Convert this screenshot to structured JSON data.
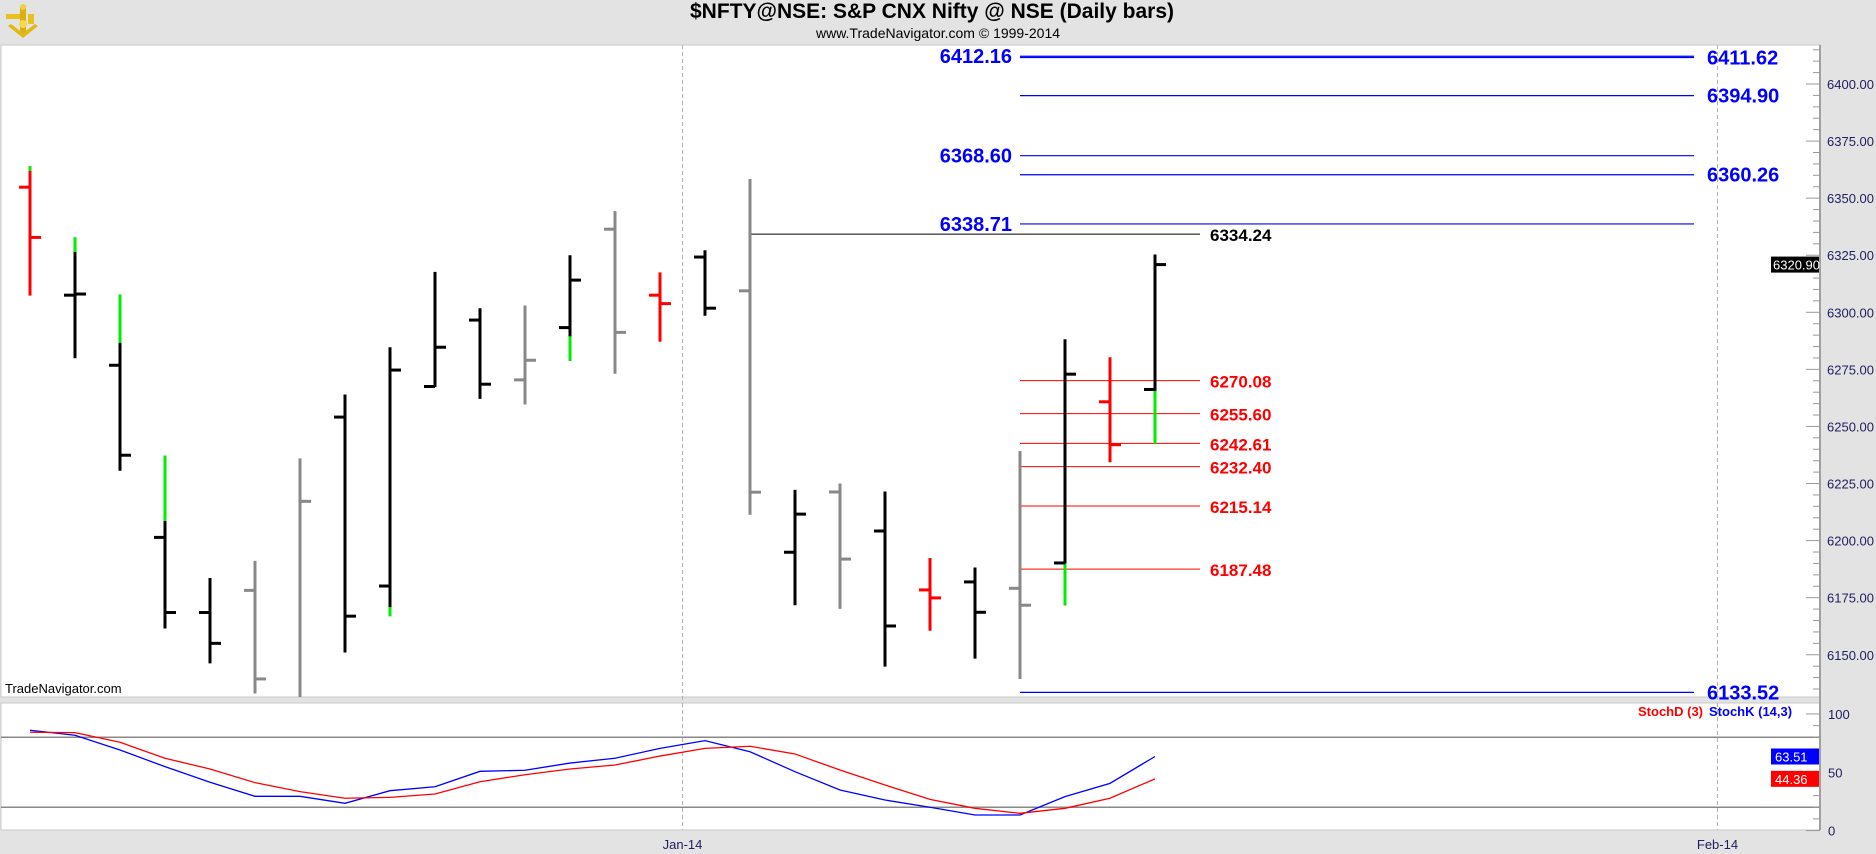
{
  "header": {
    "title": "$NFTY@NSE:  S&P CNX Nifty @ NSE  (Daily bars)",
    "subtitle": "www.TradeNavigator.com © 1999-2014",
    "logo_icon": "sextant-icon"
  },
  "watermark": "TradeNavigator.com",
  "colors": {
    "up_bar": "#000000",
    "neutral_bar": "#888888",
    "down_bar": "#ff0000",
    "highlight": "#00ee00",
    "level_blue": "#0000ff",
    "level_red": "#ff0000",
    "stoch_k": "#0000ff",
    "stoch_d": "#ff0000",
    "panel_bg": "#ffffff",
    "frame_bg": "#e3e3e3"
  },
  "chart_data": [
    {
      "type": "ohlc",
      "title": "$NFTY@NSE:  S&P CNX Nifty @ NSE  (Daily bars)",
      "ylim": [
        6131,
        6417
      ],
      "y_ticks": [
        "6150.00",
        "6175.00",
        "6200.00",
        "6225.00",
        "6250.00",
        "6275.00",
        "6300.00",
        "6325.00",
        "6350.00",
        "6375.00",
        "6400.00"
      ],
      "x_labels": [
        {
          "label": "Jan-14",
          "bar_index": 14.5
        },
        {
          "label": "Feb-14",
          "bar_index": 37.5
        }
      ],
      "last_price": "6320.90",
      "bars": [
        {
          "o": 6354.8,
          "h": 6364.0,
          "l": 6307.3,
          "c": 6332.8,
          "color": "down_bar",
          "hl": [
            6364.0,
            6361.9
          ]
        },
        {
          "o": 6307.5,
          "h": 6332.8,
          "l": 6279.9,
          "c": 6308.0,
          "color": "up_bar",
          "hl": [
            6332.8,
            6326.4
          ]
        },
        {
          "o": 6276.8,
          "h": 6307.8,
          "l": 6230.6,
          "c": 6237.4,
          "color": "up_bar",
          "hl": [
            6307.8,
            6286.6
          ]
        },
        {
          "o": 6201.4,
          "h": 6237.3,
          "l": 6161.5,
          "c": 6168.5,
          "color": "up_bar",
          "hl": [
            6237.3,
            6208.6
          ]
        },
        {
          "o": 6168.5,
          "h": 6183.6,
          "l": 6146.2,
          "c": 6155.0,
          "color": "up_bar"
        },
        {
          "o": 6178.2,
          "h": 6191.1,
          "l": 6133.0,
          "c": 6139.4,
          "color": "neutral_bar"
        },
        {
          "o": null,
          "h": 6236.0,
          "l": 6125.0,
          "c": 6217.2,
          "color": "neutral_bar"
        },
        {
          "o": 6254.1,
          "h": 6264.0,
          "l": 6151.0,
          "c": 6166.9,
          "color": "up_bar"
        },
        {
          "o": 6180.1,
          "h": 6284.7,
          "l": 6166.9,
          "c": 6274.7,
          "color": "up_bar",
          "hl": [
            6170.9,
            6166.9
          ]
        },
        {
          "o": 6267.5,
          "h": 6317.7,
          "l": 6267.2,
          "c": 6284.7,
          "color": "up_bar"
        },
        {
          "o": 6296.6,
          "h": 6301.8,
          "l": 6262.1,
          "c": 6268.5,
          "color": "up_bar"
        },
        {
          "o": 6270.4,
          "h": 6303.0,
          "l": 6259.6,
          "c": 6279.0,
          "color": "neutral_bar"
        },
        {
          "o": 6293.3,
          "h": 6325.0,
          "l": 6278.8,
          "c": 6314.1,
          "color": "up_bar",
          "hl": [
            6289.5,
            6278.8
          ]
        },
        {
          "o": 6336.4,
          "h": 6344.3,
          "l": 6273.1,
          "c": 6291.2,
          "color": "neutral_bar"
        },
        {
          "o": 6307.5,
          "h": 6317.5,
          "l": 6287.1,
          "c": 6303.8,
          "color": "down_bar"
        },
        {
          "o": 6324.2,
          "h": 6327.2,
          "l": 6298.5,
          "c": 6301.8,
          "color": "up_bar"
        },
        {
          "o": 6309.4,
          "h": 6358.4,
          "l": 6211.3,
          "c": 6221.2,
          "color": "neutral_bar"
        },
        {
          "o": 6194.9,
          "h": 6222.2,
          "l": 6171.7,
          "c": 6211.6,
          "color": "up_bar"
        },
        {
          "o": 6221.3,
          "h": 6225.0,
          "l": 6170.1,
          "c": 6191.9,
          "color": "neutral_bar"
        },
        {
          "o": 6204.2,
          "h": 6221.5,
          "l": 6144.8,
          "c": 6162.6,
          "color": "up_bar"
        },
        {
          "o": 6178.4,
          "h": 6192.4,
          "l": 6160.5,
          "c": 6174.9,
          "color": "down_bar"
        },
        {
          "o": 6181.9,
          "h": 6188.2,
          "l": 6148.3,
          "c": 6168.6,
          "color": "up_bar"
        },
        {
          "o": 6179.1,
          "h": 6239.2,
          "l": 6139.4,
          "c": 6171.7,
          "color": "neutral_bar"
        },
        {
          "o": 6190.2,
          "h": 6288.2,
          "l": 6171.7,
          "c": 6272.9,
          "color": "up_bar",
          "hl": [
            6190.0,
            6171.7
          ]
        },
        {
          "o": 6260.8,
          "h": 6280.3,
          "l": 6234.3,
          "c": 6242.0,
          "color": "down_bar"
        },
        {
          "o": 6266.2,
          "h": 6325.3,
          "l": 6242.4,
          "c": 6320.9,
          "color": "up_bar",
          "hl": [
            6265.6,
            6242.4
          ]
        }
      ],
      "levels_blue": [
        {
          "value": 6412.16,
          "label": "6412.16",
          "side": "left"
        },
        {
          "value": 6411.62,
          "label": "6411.62",
          "side": "right"
        },
        {
          "value": 6394.9,
          "label": "6394.90",
          "side": "right"
        },
        {
          "value": 6368.6,
          "label": "6368.60",
          "side": "left"
        },
        {
          "value": 6360.26,
          "label": "6360.26",
          "side": "right"
        },
        {
          "value": 6338.71,
          "label": "6338.71",
          "side": "left"
        },
        {
          "value": 6133.52,
          "label": "6133.52",
          "side": "right"
        }
      ],
      "level_black": {
        "value": 6334.24,
        "label": "6334.24",
        "from_bar": 16
      },
      "levels_red": [
        {
          "value": 6270.08,
          "label": "6270.08"
        },
        {
          "value": 6255.6,
          "label": "6255.60"
        },
        {
          "value": 6242.61,
          "label": "6242.61"
        },
        {
          "value": 6232.4,
          "label": "6232.40"
        },
        {
          "value": 6215.14,
          "label": "6215.14"
        },
        {
          "value": 6187.48,
          "label": "6187.48"
        }
      ]
    },
    {
      "type": "line",
      "ylim": [
        0,
        100
      ],
      "y_ticks": [
        "100",
        "50",
        "0"
      ],
      "reference_lines": [
        80,
        20
      ],
      "series": [
        {
          "name": "StochK (14,3)",
          "color": "stoch_k",
          "last": "63.51",
          "values": [
            86.0,
            81.7,
            69.1,
            54.8,
            41.4,
            29.4,
            29.4,
            23.4,
            34.2,
            37.6,
            50.8,
            51.7,
            57.9,
            62.0,
            70.5,
            77.1,
            67.6,
            50.5,
            34.8,
            26.2,
            20.0,
            13.4,
            13.4,
            29.1,
            40.5,
            63.51
          ]
        },
        {
          "name": "StochD (3)",
          "color": "stoch_d",
          "last": "44.36",
          "values": [
            84.3,
            84.0,
            75.7,
            62.0,
            52.8,
            41.1,
            33.4,
            27.7,
            28.5,
            31.4,
            41.9,
            47.9,
            52.8,
            56.2,
            63.9,
            70.5,
            72.3,
            65.7,
            51.9,
            39.1,
            26.8,
            19.1,
            14.8,
            19.1,
            27.7,
            44.36
          ]
        }
      ]
    }
  ]
}
